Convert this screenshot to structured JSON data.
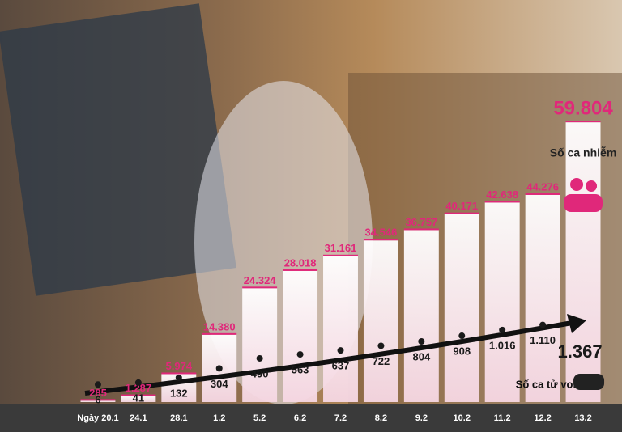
{
  "chart_data": {
    "type": "bar",
    "categories": [
      "Ngày 20.1",
      "24.1",
      "28.1",
      "1.2",
      "5.2",
      "6.2",
      "7.2",
      "8.2",
      "9.2",
      "10.2",
      "11.2",
      "12.2",
      "13.2"
    ],
    "series": [
      {
        "name": "Số ca nhiễm",
        "color": "#e0287a",
        "values": [
          285,
          1287,
          5974,
          14380,
          24324,
          28018,
          31161,
          34546,
          36757,
          40171,
          42638,
          44276,
          59804
        ],
        "value_labels": [
          "285",
          "1.287",
          "5.974",
          "14.380",
          "24.324",
          "28.018",
          "31.161",
          "34.546",
          "36.757",
          "40.171",
          "42.638",
          "44.276",
          "59.804"
        ]
      },
      {
        "name": "Số ca tử vong",
        "color": "#1a1a1a",
        "axis": "y2",
        "values": [
          6,
          41,
          132,
          304,
          490,
          563,
          637,
          722,
          804,
          908,
          1016,
          1110,
          1367
        ],
        "value_labels": [
          "6",
          "41",
          "132",
          "304",
          "490",
          "563",
          "637",
          "722",
          "804",
          "908",
          "1.016",
          "1.110",
          "1.367"
        ]
      }
    ],
    "ylim": [
      0,
      60000
    ],
    "y2lim": [
      -200,
      5000
    ],
    "grid": false
  }
}
